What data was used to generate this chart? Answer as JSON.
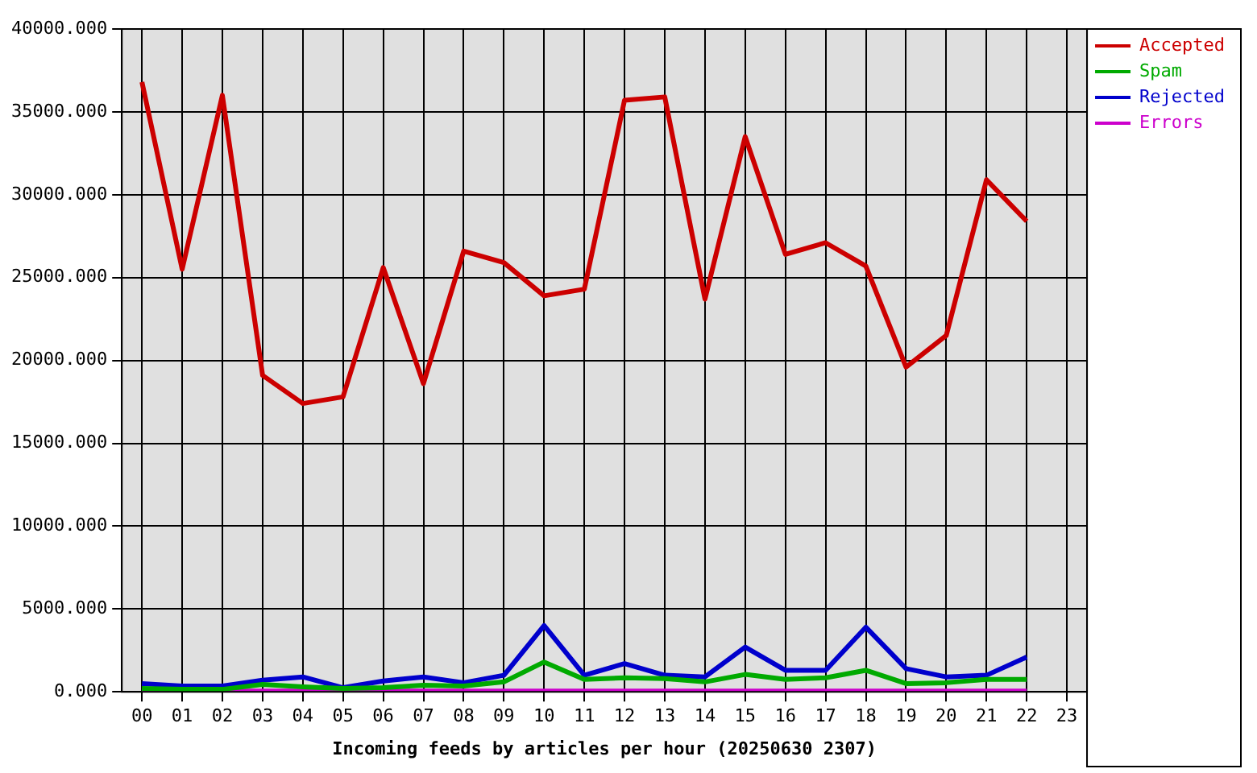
{
  "chart_data": {
    "type": "line",
    "xlabel": "Incoming feeds by articles per hour (20250630 2307)",
    "categories": [
      "00",
      "01",
      "02",
      "03",
      "04",
      "05",
      "06",
      "07",
      "08",
      "09",
      "10",
      "11",
      "12",
      "13",
      "14",
      "15",
      "16",
      "17",
      "18",
      "19",
      "20",
      "21",
      "22",
      "23"
    ],
    "series": [
      {
        "name": "Accepted",
        "color": "#cc0000",
        "values": [
          36800,
          25500,
          36000,
          19100,
          17400,
          17800,
          25600,
          18600,
          26600,
          25900,
          23900,
          24300,
          35700,
          35900,
          23700,
          33500,
          26400,
          27100,
          25700,
          19600,
          21500,
          30900,
          28400,
          null
        ]
      },
      {
        "name": "Spam",
        "color": "#00aa00",
        "values": [
          200,
          150,
          150,
          450,
          300,
          200,
          250,
          400,
          350,
          600,
          1800,
          750,
          850,
          800,
          600,
          1050,
          750,
          850,
          1300,
          500,
          550,
          750,
          750,
          null
        ]
      },
      {
        "name": "Rejected",
        "color": "#0000cc",
        "values": [
          500,
          350,
          350,
          700,
          900,
          250,
          650,
          900,
          550,
          1000,
          4000,
          1000,
          1700,
          1000,
          900,
          2700,
          1300,
          1300,
          3900,
          1400,
          900,
          1000,
          2100,
          null
        ]
      },
      {
        "name": "Errors",
        "color": "#cc00cc",
        "values": [
          50,
          50,
          50,
          50,
          50,
          50,
          50,
          50,
          50,
          50,
          50,
          50,
          50,
          50,
          50,
          50,
          50,
          50,
          50,
          50,
          50,
          50,
          50,
          null
        ]
      }
    ],
    "ylim": [
      0,
      40000
    ],
    "yticks": [
      {
        "value": 0,
        "label": "0.000"
      },
      {
        "value": 5000,
        "label": "5000.000"
      },
      {
        "value": 10000,
        "label": "10000.000"
      },
      {
        "value": 15000,
        "label": "15000.000"
      },
      {
        "value": 20000,
        "label": "20000.000"
      },
      {
        "value": 25000,
        "label": "25000.000"
      },
      {
        "value": 30000,
        "label": "30000.000"
      },
      {
        "value": 35000,
        "label": "35000.000"
      },
      {
        "value": 40000,
        "label": "40000.000"
      }
    ],
    "grid": true,
    "legend": "top right"
  }
}
